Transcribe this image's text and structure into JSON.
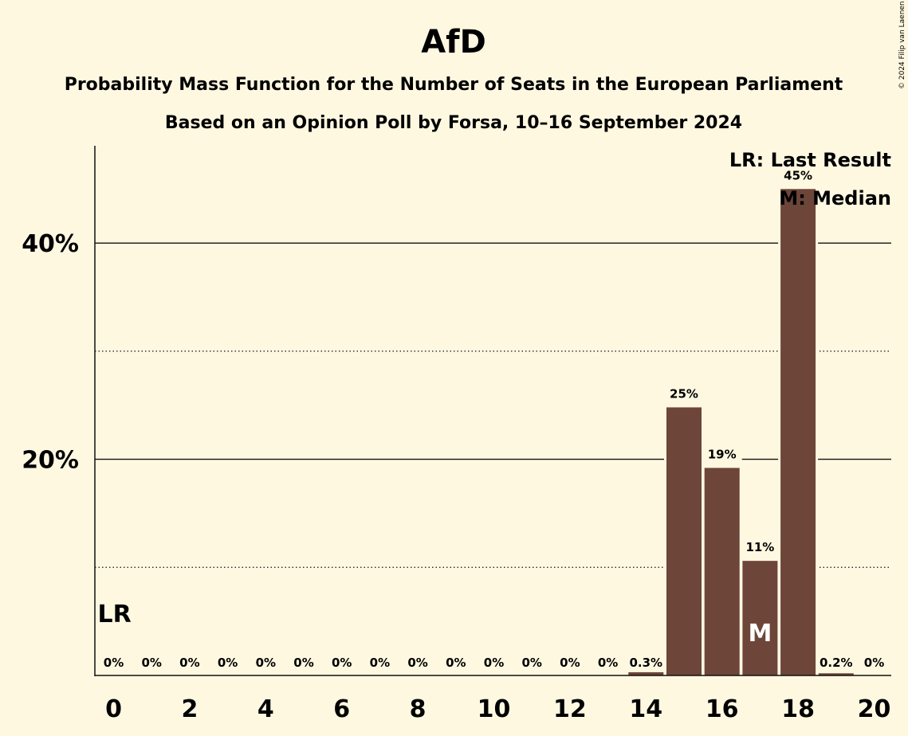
{
  "chart_data": {
    "type": "bar",
    "title": "AfD",
    "subtitle": "Probability Mass Function for the Number of Seats in the European Parliament",
    "subtitle2": "Based on an Opinion Poll by Forsa, 10–16 September 2024",
    "copyright": "© 2024 Filip van Laenen",
    "x": [
      0,
      1,
      2,
      3,
      4,
      5,
      6,
      7,
      8,
      9,
      10,
      11,
      12,
      13,
      14,
      15,
      16,
      17,
      18,
      19,
      20
    ],
    "values": [
      0,
      0,
      0,
      0,
      0,
      0,
      0,
      0,
      0,
      0,
      0,
      0,
      0,
      0,
      0.3,
      24.8,
      19.2,
      10.6,
      45.0,
      0.2,
      0
    ],
    "data_labels": [
      "0%",
      "0%",
      "0%",
      "0%",
      "0%",
      "0%",
      "0%",
      "0%",
      "0%",
      "0%",
      "0%",
      "0%",
      "0%",
      "0%",
      "0.3%",
      "25%",
      "19%",
      "11%",
      "45%",
      "0.2%",
      "0%"
    ],
    "x_tick_labels": [
      "0",
      "2",
      "4",
      "6",
      "8",
      "10",
      "12",
      "14",
      "16",
      "18",
      "20"
    ],
    "y_tick_labels": [
      "20%",
      "40%"
    ],
    "ylim": [
      0,
      49
    ],
    "gridlines_solid": [
      20,
      40
    ],
    "gridlines_dotted": [
      10,
      30
    ],
    "last_result": {
      "x": 0,
      "label": "LR"
    },
    "median": {
      "x": 17,
      "label": "M"
    },
    "legend": [
      "LR: Last Result",
      "M: Median"
    ],
    "legend_position": "top-right",
    "colors": {
      "bar": "#6d4539",
      "background": "#fff8e1",
      "text": "#111111"
    }
  }
}
